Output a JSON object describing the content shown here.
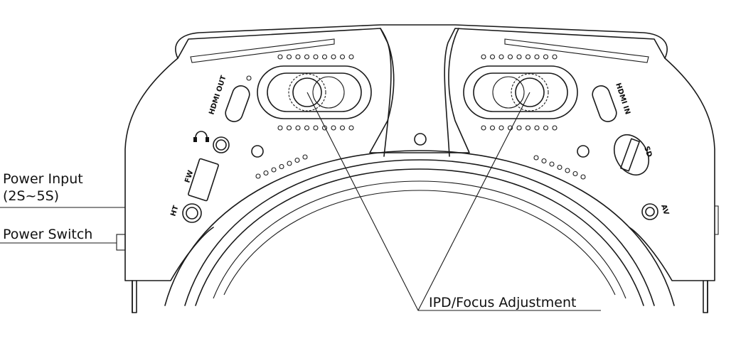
{
  "callouts": {
    "power_input_line1": "Power Input",
    "power_input_line2": "(2S~5S)",
    "power_switch": "Power Switch",
    "ipd_focus": "IPD/Focus Adjustment"
  },
  "ports": {
    "hdmi_out": "HDMI OUT",
    "hdmi_in": "HDMI IN",
    "fw": "FW",
    "ht": "HT",
    "sd": "SD",
    "av": "AV"
  },
  "icons": {
    "headphone": "headphone-icon"
  }
}
